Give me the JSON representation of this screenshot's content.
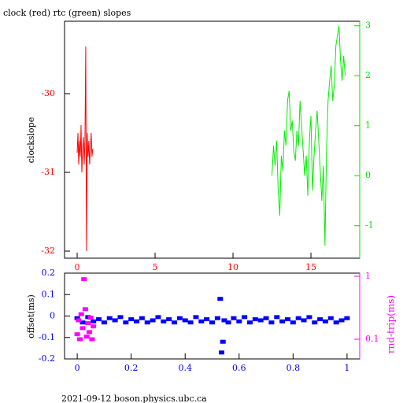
{
  "chart_data": [
    {
      "type": "line",
      "title": "clock (red) rtc (green) slopes",
      "y_label": "clockslope",
      "xlim": [
        -0.81,
        18.13
      ],
      "xticks": [
        0,
        5,
        10,
        15
      ],
      "xcolor": "#ff0000",
      "ylim": [
        -32.09,
        -29.08
      ],
      "yticks": [
        -30,
        -31,
        -32
      ],
      "ycolor": "#ff0000",
      "y2lim": [
        -1.65,
        3.09
      ],
      "y2ticks": [
        3,
        2,
        1,
        0,
        -1
      ],
      "y2color": "#00dd00",
      "series": [
        {
          "color": "#ff0000",
          "x": [
            0,
            0.05,
            0.1,
            0.15,
            0.2,
            0.25,
            0.3,
            0.35,
            0.4,
            0.45,
            0.5,
            0.55,
            0.6,
            0.65,
            0.7,
            0.75,
            0.8,
            0.85,
            0.9,
            0.95,
            1.0
          ],
          "values": [
            -30.75,
            -30.5,
            -30.9,
            -30.6,
            -30.8,
            -30.4,
            -31.0,
            -30.7,
            -30.55,
            -30.9,
            -30.6,
            -29.4,
            -32.0,
            -30.5,
            -30.8,
            -30.6,
            -30.9,
            -30.7,
            -30.5,
            -30.8,
            -30.7
          ]
        },
        {
          "color": "#00ee00",
          "axis": "y2",
          "x": [
            12.5,
            12.6,
            12.7,
            12.8,
            12.9,
            13.0,
            13.1,
            13.2,
            13.3,
            13.4,
            13.5,
            13.6,
            13.7,
            13.8,
            13.9,
            14.0,
            14.1,
            14.2,
            14.3,
            14.4,
            14.5,
            14.6,
            14.7,
            14.8,
            14.9,
            15.0,
            15.1,
            15.2,
            15.3,
            15.4,
            15.5,
            15.6,
            15.7,
            15.8,
            15.9,
            16.0,
            16.1,
            16.2,
            16.3,
            16.4,
            16.5,
            16.6,
            16.7,
            16.8,
            16.9,
            17.0,
            17.1,
            17.2
          ],
          "values": [
            0.0,
            0.6,
            0.2,
            0.7,
            -0.3,
            -0.8,
            0.4,
            0.1,
            0.9,
            0.6,
            1.5,
            1.7,
            0.9,
            1.1,
            0.5,
            0.3,
            0.9,
            0.6,
            1.5,
            1.0,
            0.5,
            0.0,
            0.4,
            -0.4,
            0.7,
            1.2,
            -0.3,
            0.4,
            0.9,
            1.3,
            0.7,
            0.1,
            -0.5,
            0.2,
            -1.4,
            0.5,
            1.5,
            1.9,
            2.2,
            1.5,
            1.8,
            2.6,
            2.8,
            3.0,
            2.3,
            1.9,
            2.4,
            2.0
          ]
        }
      ]
    },
    {
      "type": "scatter",
      "y_label": "offset(ms)",
      "y2_label": "rnd-trip(ms)",
      "footer": "2021-09-12 boson.physics.ubc.ca",
      "xlim": [
        -0.047,
        1.047
      ],
      "xticks": [
        0,
        0.2,
        0.4,
        0.6,
        0.8,
        1
      ],
      "xcolor": "#0000ff",
      "ylim": [
        -0.2,
        0.2
      ],
      "yticks": [
        0.2,
        0.1,
        0,
        -0.1,
        -0.2
      ],
      "ycolor": "#0000ff",
      "y2lim": [
        0.0487,
        1.122
      ],
      "y2scale": "log",
      "y2ticks": [
        1,
        0.1
      ],
      "y2color": "#ff00ff",
      "series": [
        {
          "color": "#0000ff",
          "x": [
            0,
            0.02,
            0.04,
            0.06,
            0.08,
            0.1,
            0.12,
            0.14,
            0.16,
            0.18,
            0.2,
            0.22,
            0.24,
            0.26,
            0.28,
            0.3,
            0.32,
            0.34,
            0.36,
            0.38,
            0.4,
            0.42,
            0.44,
            0.46,
            0.48,
            0.5,
            0.52,
            0.53,
            0.535,
            0.54,
            0.545,
            0.56,
            0.58,
            0.6,
            0.62,
            0.64,
            0.66,
            0.68,
            0.7,
            0.72,
            0.74,
            0.76,
            0.78,
            0.8,
            0.82,
            0.84,
            0.86,
            0.88,
            0.9,
            0.92,
            0.94,
            0.96,
            0.98,
            1.0
          ],
          "values": [
            -0.01,
            -0.03,
            -0.005,
            -0.025,
            -0.015,
            -0.03,
            -0.01,
            -0.02,
            -0.005,
            -0.03,
            -0.015,
            -0.025,
            -0.01,
            -0.03,
            -0.02,
            -0.005,
            -0.025,
            -0.015,
            -0.03,
            -0.01,
            -0.02,
            -0.03,
            -0.005,
            -0.025,
            -0.015,
            -0.03,
            -0.01,
            0.08,
            -0.17,
            -0.12,
            -0.02,
            -0.03,
            -0.01,
            -0.025,
            -0.005,
            -0.03,
            -0.015,
            -0.02,
            -0.01,
            -0.03,
            -0.005,
            -0.025,
            -0.015,
            -0.03,
            -0.01,
            -0.02,
            -0.005,
            -0.03,
            -0.015,
            -0.025,
            -0.01,
            -0.03,
            -0.02,
            -0.01
          ]
        },
        {
          "color": "#ff00ff",
          "axis": "y2",
          "x": [
            0,
            0.005,
            0.01,
            0.015,
            0.02,
            0.025,
            0.03,
            0.035,
            0.04,
            0.045,
            0.05,
            0.055,
            0.06
          ],
          "values": [
            0.12,
            0.2,
            0.1,
            0.25,
            0.15,
            0.9,
            0.3,
            0.11,
            0.18,
            0.13,
            0.22,
            0.1,
            0.16
          ]
        }
      ]
    }
  ]
}
